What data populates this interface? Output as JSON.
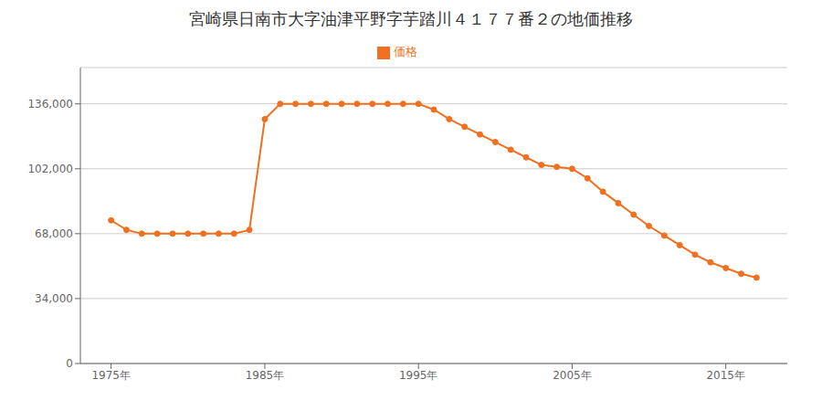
{
  "chart_data": {
    "type": "line",
    "title": "宮崎県日南市大字油津平野字芋踏川４１７７番２の地価推移",
    "x": [
      1975,
      1976,
      1977,
      1978,
      1979,
      1980,
      1981,
      1982,
      1983,
      1984,
      1985,
      1986,
      1987,
      1988,
      1989,
      1990,
      1991,
      1992,
      1993,
      1994,
      1995,
      1996,
      1997,
      1998,
      1999,
      2000,
      2001,
      2002,
      2003,
      2004,
      2005,
      2006,
      2007,
      2008,
      2009,
      2010,
      2011,
      2012,
      2013,
      2014,
      2015,
      2016,
      2017
    ],
    "series": [
      {
        "name": "価格",
        "color": "#f07020",
        "marker": "circle",
        "values": [
          75000,
          70000,
          68000,
          68000,
          68000,
          68000,
          68000,
          68000,
          68000,
          70000,
          128000,
          136000,
          136000,
          136000,
          136000,
          136000,
          136000,
          136000,
          136000,
          136000,
          136000,
          133000,
          128000,
          124000,
          120000,
          116000,
          112000,
          108000,
          104000,
          103000,
          102000,
          97000,
          90000,
          84000,
          78000,
          72000,
          67000,
          62000,
          57000,
          53000,
          50000,
          47000,
          45000
        ]
      }
    ],
    "xlim": [
      1973,
      2019
    ],
    "xticks": [
      {
        "value": 1975,
        "label": "1975年"
      },
      {
        "value": 1985,
        "label": "1985年"
      },
      {
        "value": 1995,
        "label": "1995年"
      },
      {
        "value": 2005,
        "label": "2005年"
      },
      {
        "value": 2015,
        "label": "2015年"
      }
    ],
    "ylim": [
      0,
      155000
    ],
    "yticks": [
      0,
      {
        "value": 34000,
        "label": "34,000"
      },
      {
        "value": 68000,
        "label": "68,000"
      },
      {
        "value": 102000,
        "label": "102,000"
      },
      {
        "value": 136000,
        "label": "136,000"
      }
    ],
    "grid": "y",
    "legend": "top"
  }
}
